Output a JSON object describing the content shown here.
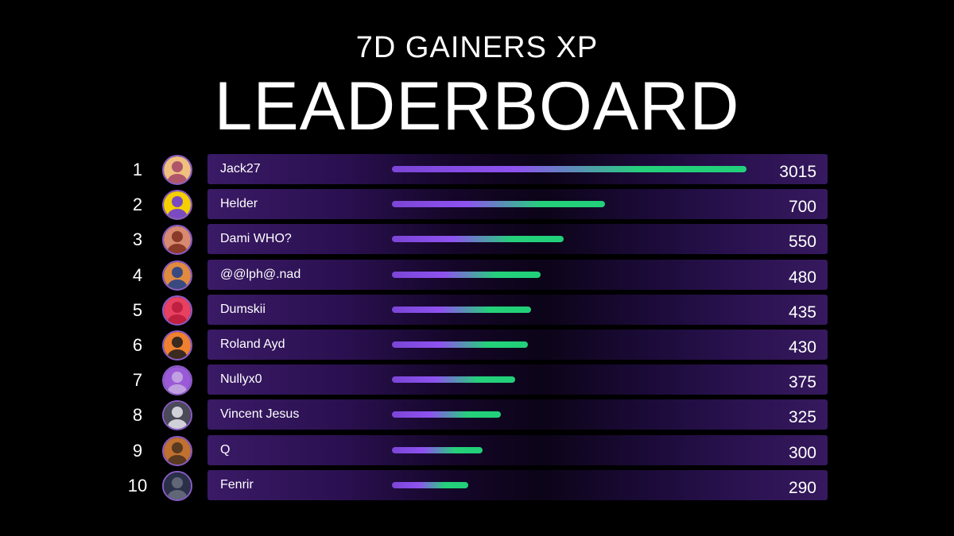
{
  "header": {
    "subtitle": "7D GAINERS XP",
    "title": "LEADERBOARD"
  },
  "chart_data": {
    "type": "bar",
    "orientation": "horizontal",
    "categories": [
      "Jack27",
      "Helder",
      "Dami WHO?",
      "@@lph@.nad",
      "Dumskii",
      "Roland Ayd",
      "Nullyx0",
      "Vincent Jesus",
      "Q",
      "Fenrir"
    ],
    "values": [
      3015,
      700,
      550,
      480,
      435,
      430,
      375,
      325,
      300,
      290
    ],
    "title": "LEADERBOARD",
    "subtitle": "7D GAINERS XP"
  },
  "rows": [
    {
      "rank": "1",
      "name": "Jack27",
      "value": "3015",
      "xp": 3015,
      "fill": 0.98,
      "avatar_color": "#b0566a",
      "avatar_bg": "#f0c080",
      "avatar_icon": "avatar-portrait-icon"
    },
    {
      "rank": "2",
      "name": "Helder",
      "value": "700",
      "xp": 700,
      "fill": 0.59,
      "avatar_color": "#7a4bc0",
      "avatar_bg": "#f5d000",
      "avatar_icon": "avatar-astronaut-icon"
    },
    {
      "rank": "3",
      "name": "Dami WHO?",
      "value": "550",
      "xp": 550,
      "fill": 0.475,
      "avatar_color": "#8a3a28",
      "avatar_bg": "#d88a70",
      "avatar_icon": "avatar-anime-icon"
    },
    {
      "rank": "4",
      "name": "@@lph@.nad",
      "value": "480",
      "xp": 480,
      "fill": 0.41,
      "avatar_color": "#3a4a80",
      "avatar_bg": "#e08a40",
      "avatar_icon": "avatar-planet-icon"
    },
    {
      "rank": "5",
      "name": "Dumskii",
      "value": "435",
      "xp": 435,
      "fill": 0.385,
      "avatar_color": "#c02040",
      "avatar_bg": "#e84060",
      "avatar_icon": "avatar-mask-icon"
    },
    {
      "rank": "6",
      "name": "Roland Ayd",
      "value": "430",
      "xp": 430,
      "fill": 0.375,
      "avatar_color": "#3a2a20",
      "avatar_bg": "#f08030",
      "avatar_icon": "avatar-person-icon"
    },
    {
      "rank": "7",
      "name": "Nullyx0",
      "value": "375",
      "xp": 375,
      "fill": 0.34,
      "avatar_color": "#c0a0e0",
      "avatar_bg": "#9a5ad8",
      "avatar_icon": "avatar-ghost-icon"
    },
    {
      "rank": "8",
      "name": "Vincent Jesus",
      "value": "325",
      "xp": 325,
      "fill": 0.3,
      "avatar_color": "#d0d0d8",
      "avatar_bg": "#4a4a58",
      "avatar_icon": "avatar-robot-icon"
    },
    {
      "rank": "9",
      "name": "Q",
      "value": "300",
      "xp": 300,
      "fill": 0.25,
      "avatar_color": "#5a3a20",
      "avatar_bg": "#c07030",
      "avatar_icon": "avatar-face-icon"
    },
    {
      "rank": "10",
      "name": "Fenrir",
      "value": "290",
      "xp": 290,
      "fill": 0.21,
      "avatar_color": "#606878",
      "avatar_bg": "#2a3048",
      "avatar_icon": "avatar-wolf-icon"
    }
  ]
}
